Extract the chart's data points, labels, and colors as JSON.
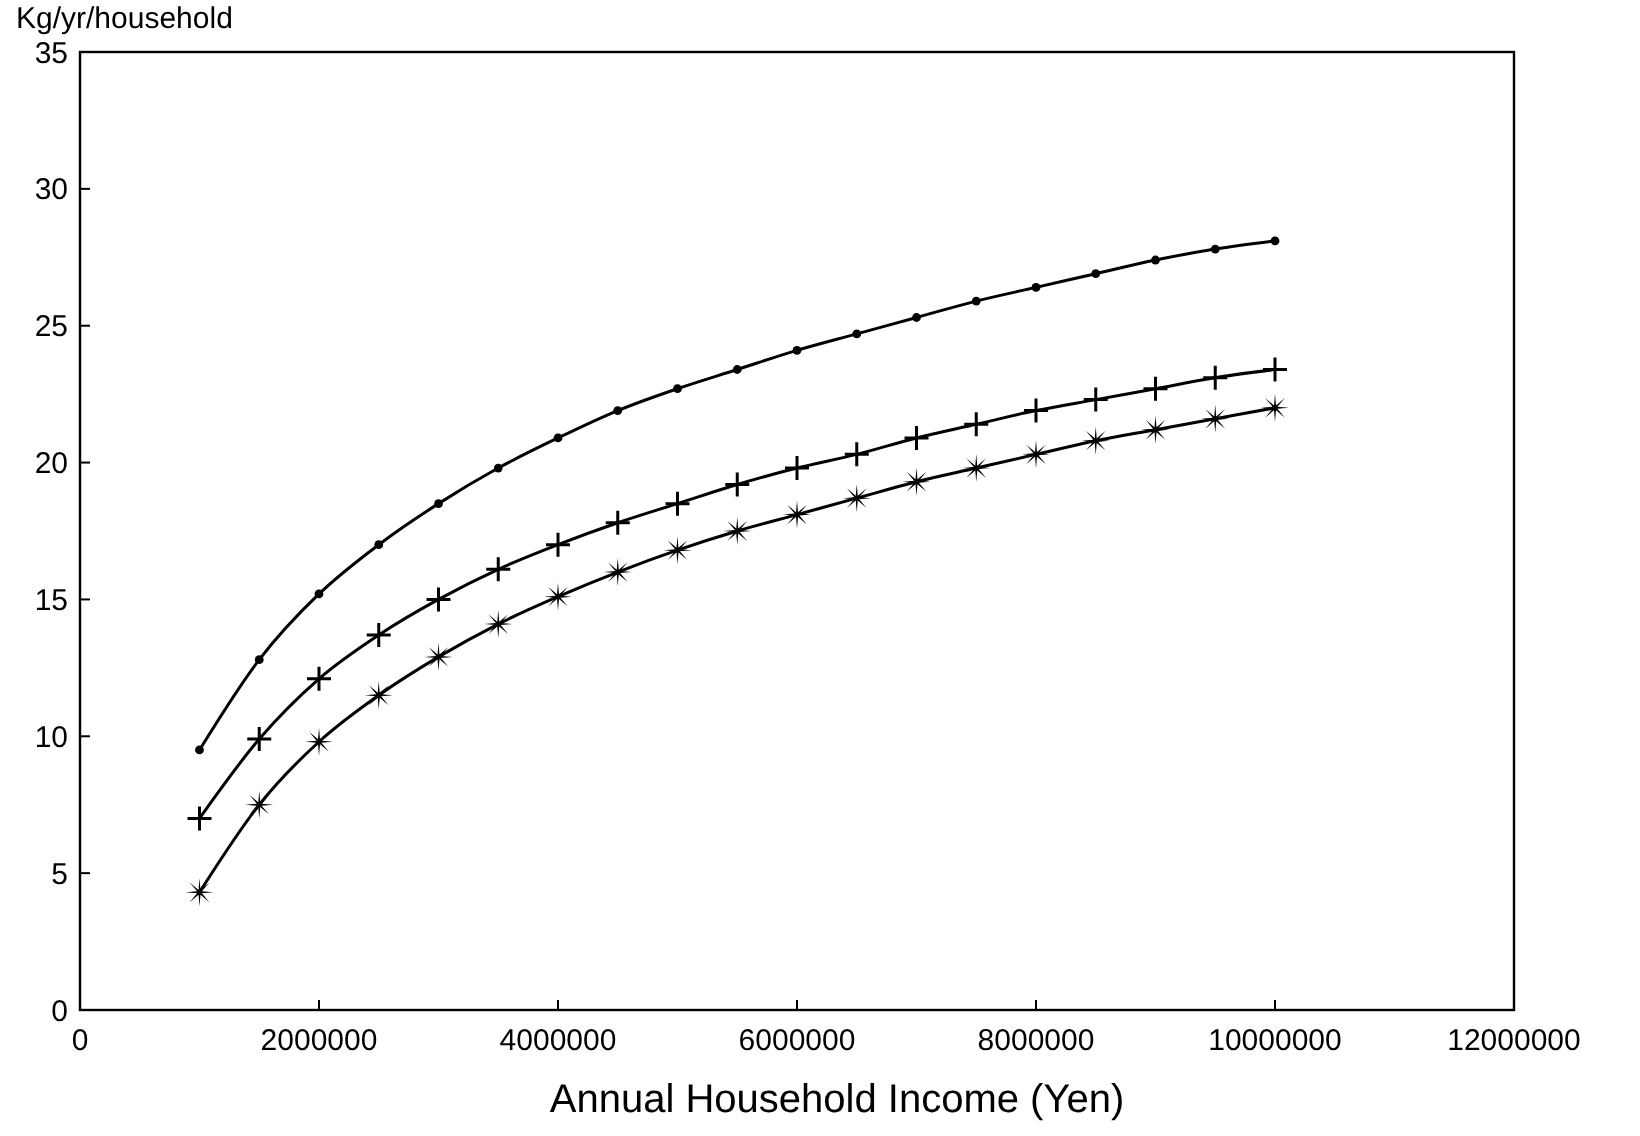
{
  "chart_data": {
    "type": "line",
    "ylabel": "Kg/yr/household",
    "xlabel": "Annual Household Income (Yen)",
    "x": [
      1000000,
      1500000,
      2000000,
      2500000,
      3000000,
      3500000,
      4000000,
      4500000,
      5000000,
      5500000,
      6000000,
      6500000,
      7000000,
      7500000,
      8000000,
      8500000,
      9000000,
      9500000,
      10000000
    ],
    "series": [
      {
        "color": "#000000",
        "marker": "circle",
        "values": [
          9.5,
          12.8,
          15.2,
          17.0,
          18.5,
          19.8,
          20.9,
          21.9,
          22.7,
          23.4,
          24.1,
          24.7,
          25.3,
          25.9,
          26.4,
          26.9,
          27.4,
          27.8,
          28.1
        ]
      },
      {
        "color": "#000000",
        "marker": "cross",
        "values": [
          7.0,
          9.9,
          12.1,
          13.7,
          15.0,
          16.1,
          17.0,
          17.8,
          18.5,
          19.2,
          19.8,
          20.3,
          20.9,
          21.4,
          21.9,
          22.3,
          22.7,
          23.1,
          23.4
        ]
      },
      {
        "color": "#000000",
        "marker": "star",
        "values": [
          4.3,
          7.5,
          9.8,
          11.5,
          12.9,
          14.1,
          15.1,
          16.0,
          16.8,
          17.5,
          18.1,
          18.7,
          19.3,
          19.8,
          20.3,
          20.8,
          21.2,
          21.6,
          22.0
        ]
      }
    ],
    "xlim": [
      0,
      12000000
    ],
    "xticks": [
      0,
      2000000,
      4000000,
      6000000,
      8000000,
      10000000,
      12000000
    ],
    "ylim": [
      0,
      35
    ],
    "yticks": [
      0,
      5,
      10,
      15,
      20,
      25,
      30,
      35
    ],
    "grid": false
  }
}
